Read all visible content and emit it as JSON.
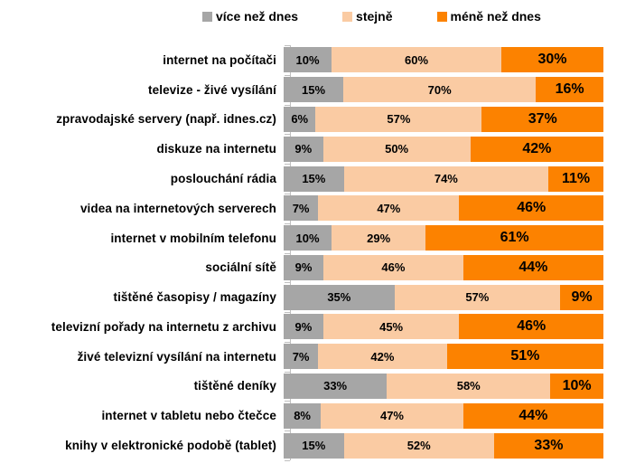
{
  "colors": {
    "gray": "#A6A6A6",
    "peach": "#FACBA3",
    "orange": "#FC8200",
    "axis": "#BFBFBF",
    "text": "#000000"
  },
  "legend": {
    "items": [
      {
        "label": "více než dnes",
        "color": "#A6A6A6"
      },
      {
        "label": "stejně",
        "color": "#FACBA3"
      },
      {
        "label": "méně než dnes",
        "color": "#FC8200"
      }
    ]
  },
  "chart_data": {
    "type": "bar",
    "orientation": "horizontal",
    "stacked": true,
    "percent_stacked": true,
    "title": "",
    "xlabel": "",
    "ylabel": "",
    "unit": "%",
    "xlim": [
      0,
      100
    ],
    "grid": false,
    "legend_position": "top",
    "value_labels_visible": true,
    "value_label_suffix": "%",
    "categories": [
      "internet na počítači",
      "televize - živé vysílání",
      "zpravodajské servery (např. idnes.cz)",
      "diskuze na internetu",
      "poslouchání rádia",
      "videa na internetových serverech",
      "internet v mobilním telefonu",
      "sociální sítě",
      "tištěné časopisy / magazíny",
      "televizní pořady na internetu z archivu",
      "živé televizní vysílání na internetu",
      "tištěné deníky",
      "internet v tabletu nebo čtečce",
      "knihy v elektronické podobě (tablet)"
    ],
    "series": [
      {
        "name": "více než dnes",
        "color": "#A6A6A6",
        "values": [
          10,
          15,
          6,
          9,
          15,
          7,
          10,
          9,
          35,
          9,
          7,
          33,
          8,
          15
        ]
      },
      {
        "name": "stejně",
        "color": "#FACBA3",
        "values": [
          60,
          70,
          57,
          50,
          74,
          47,
          29,
          46,
          57,
          45,
          42,
          58,
          47,
          52
        ]
      },
      {
        "name": "méně než dnes",
        "color": "#FC8200",
        "values": [
          30,
          16,
          37,
          42,
          11,
          46,
          61,
          44,
          9,
          46,
          51,
          10,
          44,
          33
        ]
      }
    ]
  }
}
